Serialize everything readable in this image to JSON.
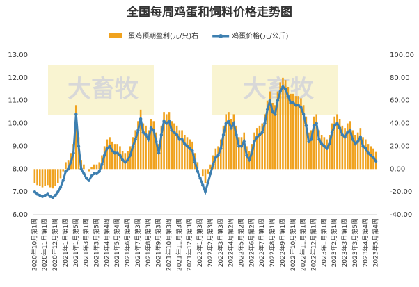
{
  "chart_data": {
    "type": "bar-line",
    "title": "全国每周鸡蛋和饲料价格走势图",
    "watermark": "大畜牧",
    "categories": [
      "2020年10月第1周",
      null,
      null,
      null,
      "2020年11月第1周",
      null,
      null,
      null,
      "2020年12月第1周",
      null,
      null,
      null,
      "2021年1月第1周",
      null,
      null,
      null,
      "2021年1月第5周",
      null,
      null,
      null,
      "2021年3月第1周",
      null,
      null,
      null,
      "2021年3月第5周",
      null,
      null,
      null,
      "2021年4月第4周",
      null,
      null,
      null,
      "2021年5月第4周",
      null,
      null,
      null,
      "2021年6月第4周",
      null,
      null,
      null,
      "2021年7月第3周",
      null,
      null,
      null,
      "2021年8月第3周",
      null,
      null,
      null,
      "2021年9月第3周",
      null,
      null,
      null,
      "2021年10月第3周",
      null,
      null,
      null,
      "2021年11月第3周",
      null,
      null,
      null,
      "2021年12月第3周",
      null,
      null,
      null,
      "2022年1月第3周",
      null,
      null,
      null,
      "2022年2月第3周",
      null,
      null,
      null,
      "2022年3月第3周",
      null,
      null,
      null,
      "2022年4月第2周",
      null,
      null,
      null,
      "2022年5月第2周",
      null,
      null,
      null,
      "2022年6月第2周",
      null,
      null,
      null,
      "2022年7月第1周",
      null,
      null,
      null,
      "2022年8月第1周",
      null,
      null,
      null,
      "2022年9月第1周",
      null,
      null,
      null,
      "2022年10月第1周",
      null,
      null,
      null,
      "2022年11月第1周",
      null,
      null,
      null,
      "2022年12月第1周",
      null,
      null,
      null,
      "2023年1月第1周",
      null,
      null,
      null,
      "2023年2月第1周",
      null,
      null,
      null,
      "2023年3月第1周",
      null,
      null,
      null,
      "2023年3月第5周",
      null,
      null,
      null,
      "2023年4月第4周",
      null,
      null,
      null,
      "2023年5月第4周"
    ],
    "series": [
      {
        "name": "蛋鸡预期盈利(元/只)右",
        "color": "#f0a21e",
        "axis": "y2",
        "kind": "bar",
        "values": [
          -12,
          -14,
          -15,
          -16,
          -15,
          -14,
          -16,
          -17,
          -15,
          -12,
          -8,
          -2,
          6,
          8,
          14,
          22,
          56,
          28,
          8,
          4,
          0,
          -2,
          2,
          4,
          4,
          6,
          12,
          20,
          26,
          28,
          24,
          22,
          22,
          20,
          16,
          14,
          16,
          20,
          28,
          34,
          42,
          52,
          40,
          38,
          34,
          44,
          42,
          32,
          22,
          38,
          50,
          48,
          50,
          42,
          40,
          38,
          34,
          34,
          30,
          28,
          26,
          24,
          14,
          6,
          0,
          -6,
          -12,
          -4,
          4,
          12,
          18,
          20,
          26,
          38,
          48,
          50,
          44,
          48,
          38,
          28,
          28,
          32,
          20,
          16,
          22,
          32,
          36,
          38,
          40,
          48,
          60,
          68,
          58,
          56,
          68,
          76,
          80,
          78,
          72,
          66,
          66,
          64,
          64,
          62,
          56,
          46,
          32,
          34,
          46,
          48,
          34,
          30,
          28,
          26,
          30,
          40,
          46,
          48,
          44,
          38,
          36,
          40,
          42,
          34,
          30,
          32,
          36,
          28,
          26,
          22,
          20,
          18,
          15
        ]
      },
      {
        "name": "鸡蛋价格(元/公斤)",
        "color": "#3d7fb0",
        "kind": "line",
        "values": [
          7.0,
          6.9,
          6.85,
          6.8,
          6.85,
          6.9,
          6.8,
          6.75,
          6.85,
          7.0,
          7.2,
          7.5,
          7.9,
          8.0,
          8.3,
          8.7,
          10.4,
          9.0,
          8.0,
          7.8,
          7.6,
          7.5,
          7.7,
          7.8,
          7.8,
          7.9,
          8.2,
          8.6,
          8.9,
          9.0,
          8.8,
          8.7,
          8.7,
          8.6,
          8.4,
          8.3,
          8.4,
          8.6,
          9.0,
          9.3,
          9.7,
          10.2,
          9.6,
          9.5,
          9.3,
          9.8,
          9.7,
          9.2,
          8.7,
          9.5,
          10.1,
          10.0,
          10.1,
          9.7,
          9.6,
          9.5,
          9.3,
          9.3,
          9.1,
          9.0,
          8.9,
          8.8,
          8.3,
          7.9,
          7.6,
          7.3,
          7.0,
          7.4,
          7.8,
          8.2,
          8.5,
          8.6,
          8.9,
          9.5,
          10.0,
          10.1,
          9.8,
          10.0,
          9.5,
          9.0,
          9.0,
          9.2,
          8.6,
          8.4,
          8.7,
          9.2,
          9.4,
          9.5,
          9.6,
          10.0,
          10.6,
          11.0,
          10.5,
          10.4,
          11.0,
          11.4,
          11.6,
          11.5,
          11.2,
          10.9,
          10.9,
          10.8,
          10.8,
          10.7,
          10.4,
          9.9,
          9.2,
          9.3,
          9.9,
          10.0,
          9.3,
          9.1,
          9.0,
          8.9,
          9.1,
          9.6,
          9.9,
          10.0,
          9.8,
          9.5,
          9.4,
          9.6,
          9.7,
          9.3,
          9.1,
          9.2,
          9.4,
          9.0,
          8.9,
          8.7,
          8.6,
          8.5,
          8.35
        ]
      }
    ],
    "ylim": [
      6,
      13
    ],
    "yticks": [
      {
        "value": 6,
        "label": "6.00"
      },
      {
        "value": 7,
        "label": "7.00"
      },
      {
        "value": 8,
        "label": "8.00"
      },
      {
        "value": 9,
        "label": "9.00"
      },
      {
        "value": 10,
        "label": "10.00"
      },
      {
        "value": 11,
        "label": "11.00"
      },
      {
        "value": 12,
        "label": "12.00"
      },
      {
        "value": 13,
        "label": "13.00"
      }
    ],
    "y2lim": [
      -40,
      100
    ],
    "y2ticks": [
      {
        "value": -40,
        "label": "-40.00"
      },
      {
        "value": -20,
        "label": "-20.00"
      },
      {
        "value": 0,
        "label": "0.00"
      },
      {
        "value": 20,
        "label": "20.00"
      },
      {
        "value": 40,
        "label": "40.00"
      },
      {
        "value": 60,
        "label": "60.00"
      },
      {
        "value": 80,
        "label": "80.00"
      },
      {
        "value": 100,
        "label": "100.00"
      }
    ],
    "grid": false,
    "legend": "top"
  }
}
